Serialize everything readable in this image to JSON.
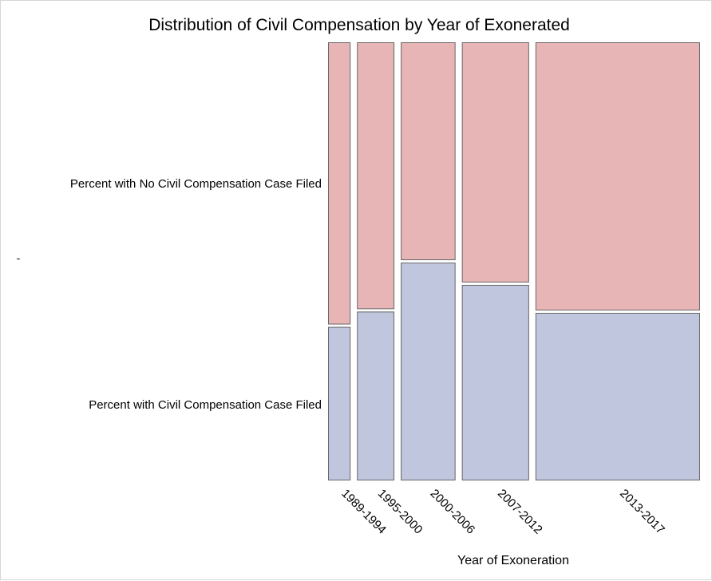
{
  "chart_data": {
    "type": "mosaic",
    "title": "Distribution of Civil Compensation by Year of Exonerated",
    "xlabel": "Year of Exoneration",
    "ylabel": "-",
    "categories": [
      "1989-1994",
      "1995-2000",
      "2000-2006",
      "2007-2012",
      "2013-2017"
    ],
    "category_share": [
      0.065,
      0.108,
      0.158,
      0.194,
      0.475
    ],
    "series": [
      {
        "name": "Percent with Civil Compensation Case Filed",
        "values": [
          35.3,
          38.8,
          50.0,
          44.9,
          38.5
        ],
        "color": "#c0c6de"
      },
      {
        "name": "Percent with No Civil Compensation Case Filed",
        "values": [
          64.7,
          61.2,
          50.0,
          55.1,
          61.5
        ],
        "color": "#e8b5b6"
      }
    ],
    "ylim": [
      0,
      100
    ],
    "grid": false
  }
}
